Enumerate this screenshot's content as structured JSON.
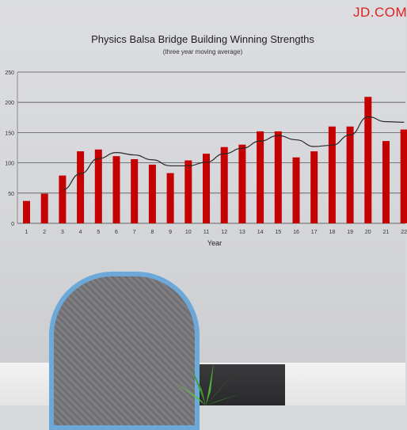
{
  "brand": "JD.COM",
  "chart_data": {
    "type": "bar",
    "title": "Physics Balsa Bridge Building Winning Strengths",
    "subtitle": "(three year moving average)",
    "xlabel": "Year",
    "ylabel": "",
    "ylim": [
      0,
      250
    ],
    "yticks": [
      0,
      50,
      100,
      150,
      200,
      250
    ],
    "grid": true,
    "categories": [
      "1",
      "2",
      "3",
      "4",
      "5",
      "6",
      "7",
      "8",
      "9",
      "10",
      "11",
      "12",
      "13",
      "14",
      "15",
      "16",
      "17",
      "18",
      "19",
      "20",
      "21",
      "22"
    ],
    "values": [
      37,
      49,
      79,
      119,
      122,
      111,
      106,
      97,
      83,
      104,
      115,
      126,
      130,
      152,
      152,
      109,
      119,
      160,
      160,
      209,
      136,
      155
    ],
    "moving_average": [
      null,
      null,
      55,
      82,
      107,
      117,
      113,
      105,
      95,
      95,
      101,
      115,
      124,
      136,
      145,
      138,
      127,
      129,
      146,
      176,
      168,
      167
    ],
    "bar_color": "#c40000",
    "line_color": "#2a2a2a"
  }
}
